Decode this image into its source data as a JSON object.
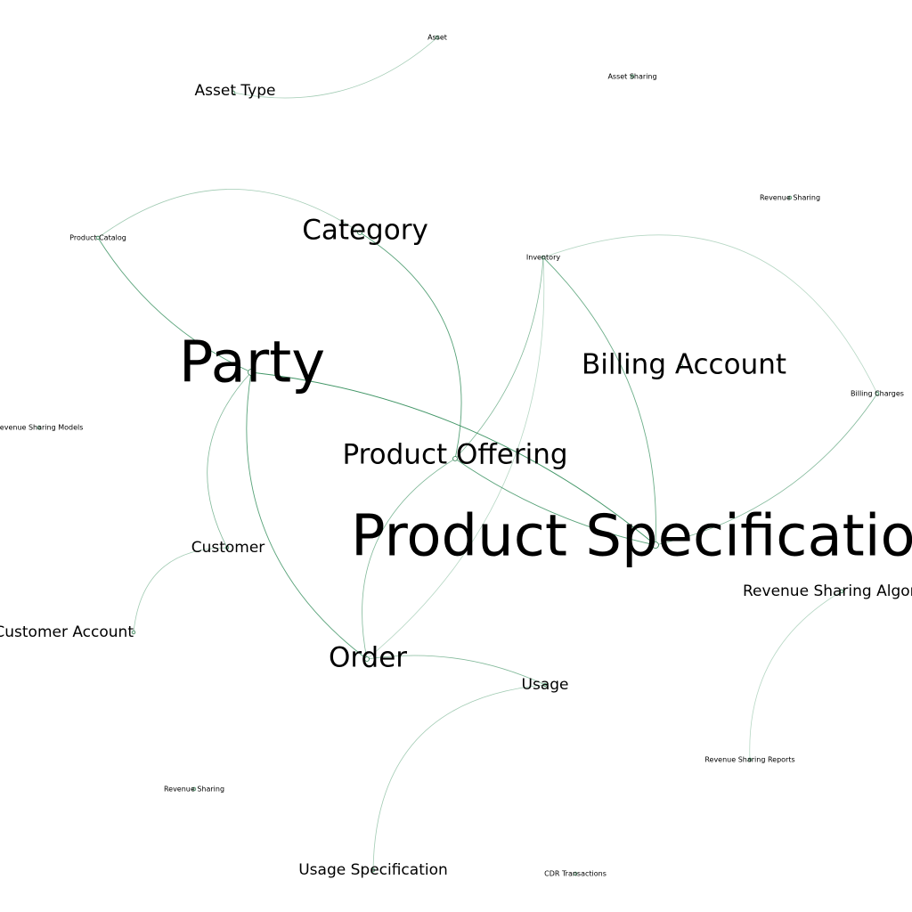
{
  "graph": {
    "edge_color": "#2e8b57",
    "node_color": "#2e7d4f",
    "nodes": [
      {
        "id": "asset",
        "label": "Asset"
      },
      {
        "id": "asset-type",
        "label": "Asset Type"
      },
      {
        "id": "asset-sharing",
        "label": "Asset Sharing"
      },
      {
        "id": "revenue-sharing-top",
        "label": "Revenue Sharing"
      },
      {
        "id": "category",
        "label": "Category"
      },
      {
        "id": "product-catalog",
        "label": "Product Catalog"
      },
      {
        "id": "inventory",
        "label": "Inventory"
      },
      {
        "id": "party",
        "label": "Party"
      },
      {
        "id": "billing-account",
        "label": "Billing Account"
      },
      {
        "id": "billing-charges",
        "label": "Billing Charges"
      },
      {
        "id": "revenue-sharing-models",
        "label": "Revenue Sharing Models"
      },
      {
        "id": "product-offering",
        "label": "Product Offering"
      },
      {
        "id": "product-specification",
        "label": "Product Specification"
      },
      {
        "id": "customer",
        "label": "Customer"
      },
      {
        "id": "revenue-sharing-algorithm",
        "label": "Revenue Sharing Algorithm"
      },
      {
        "id": "customer-account",
        "label": "Customer Account"
      },
      {
        "id": "order",
        "label": "Order"
      },
      {
        "id": "usage",
        "label": "Usage"
      },
      {
        "id": "revenue-sharing-reports",
        "label": "Revenue Sharing Reports"
      },
      {
        "id": "revenue-sharing-bottom",
        "label": "Revenue Sharing"
      },
      {
        "id": "usage-specification",
        "label": "Usage Specification"
      },
      {
        "id": "cdr-transactions",
        "label": "CDR Transactions"
      }
    ],
    "edges": [
      {
        "source": "asset",
        "target": "asset-type"
      },
      {
        "source": "product-catalog",
        "target": "category"
      },
      {
        "source": "product-catalog",
        "target": "party"
      },
      {
        "source": "category",
        "target": "product-offering"
      },
      {
        "source": "inventory",
        "target": "product-offering"
      },
      {
        "source": "inventory",
        "target": "product-specification"
      },
      {
        "source": "inventory",
        "target": "billing-charges"
      },
      {
        "source": "inventory",
        "target": "order"
      },
      {
        "source": "party",
        "target": "product-specification"
      },
      {
        "source": "party",
        "target": "customer"
      },
      {
        "source": "party",
        "target": "order"
      },
      {
        "source": "product-offering",
        "target": "product-specification"
      },
      {
        "source": "product-offering",
        "target": "order"
      },
      {
        "source": "billing-charges",
        "target": "product-specification"
      },
      {
        "source": "billing-account",
        "target": "product-specification"
      },
      {
        "source": "customer",
        "target": "customer-account"
      },
      {
        "source": "order",
        "target": "usage"
      },
      {
        "source": "usage",
        "target": "usage-specification"
      },
      {
        "source": "revenue-sharing-algorithm",
        "target": "revenue-sharing-reports"
      }
    ]
  }
}
